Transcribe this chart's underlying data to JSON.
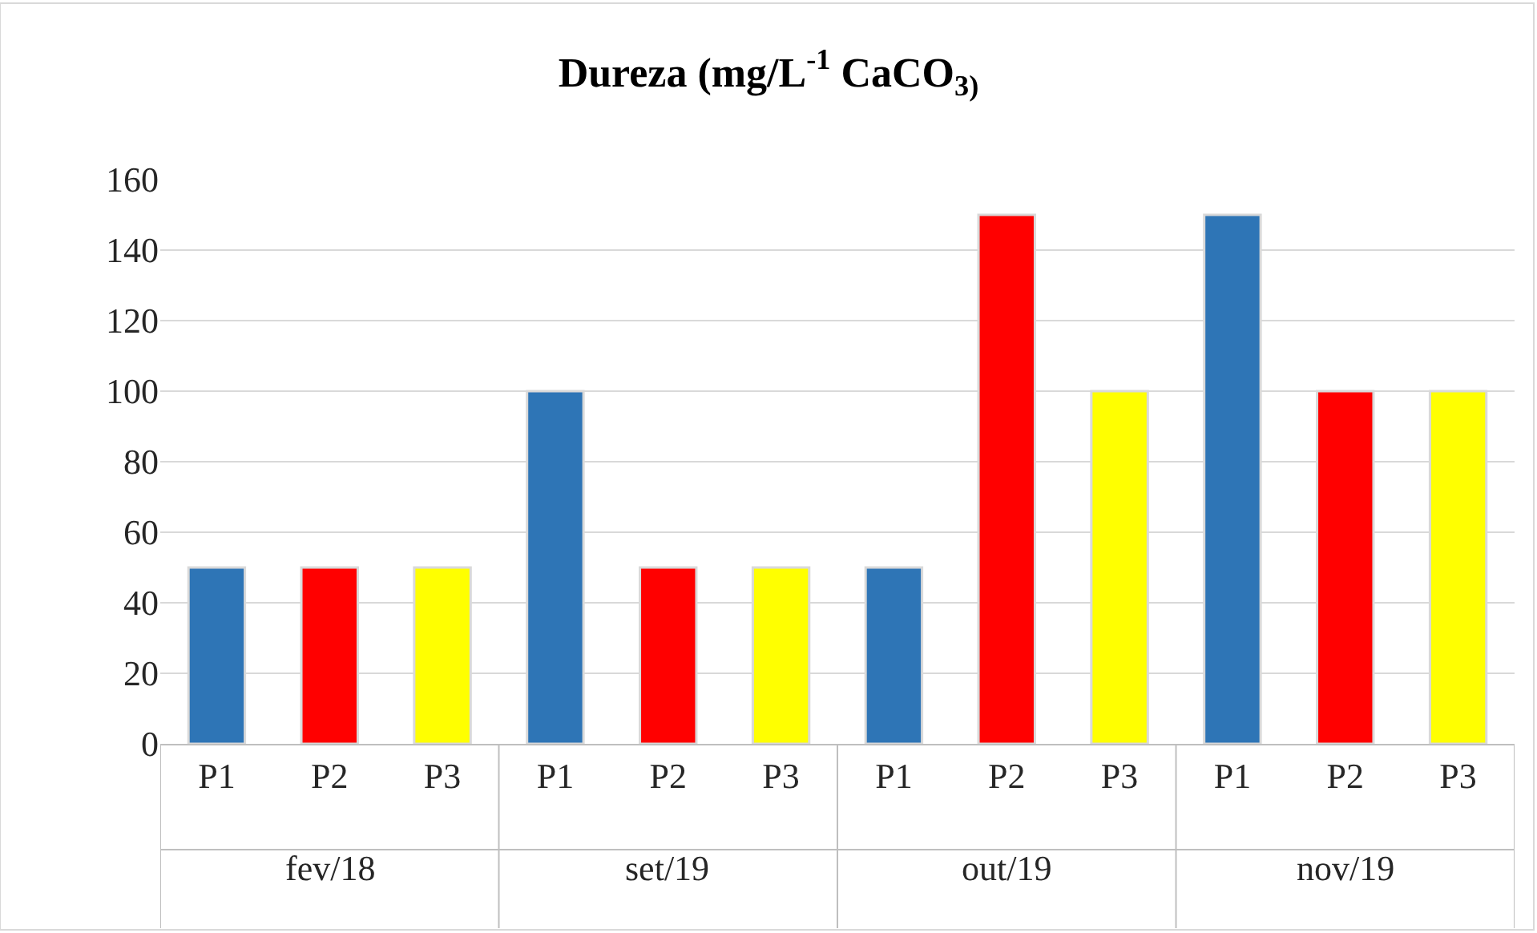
{
  "chart_data": {
    "type": "bar",
    "title": "Dureza (mg/L$^{-1}$ CaCO$_{3)}$",
    "categories": [
      "P1",
      "P2",
      "P3",
      "P1",
      "P2",
      "P3",
      "P1",
      "P2",
      "P3",
      "P1",
      "P2",
      "P3"
    ],
    "values": [
      50,
      50,
      50,
      100,
      50,
      50,
      50,
      150,
      100,
      150,
      100,
      100
    ],
    "colors": [
      "#2e75b6",
      "#ff0000",
      "#ffff00",
      "#2e75b6",
      "#ff0000",
      "#ffff00",
      "#2e75b6",
      "#ff0000",
      "#ffff00",
      "#2e75b6",
      "#ff0000",
      "#ffff00"
    ],
    "annotations": [
      "fev/18",
      "set/19",
      "out/19",
      "nov/19"
    ],
    "ylim": [
      0,
      160
    ],
    "yticks": [
      0,
      20,
      40,
      60,
      80,
      100,
      120,
      140,
      160
    ],
    "grid": "y"
  }
}
